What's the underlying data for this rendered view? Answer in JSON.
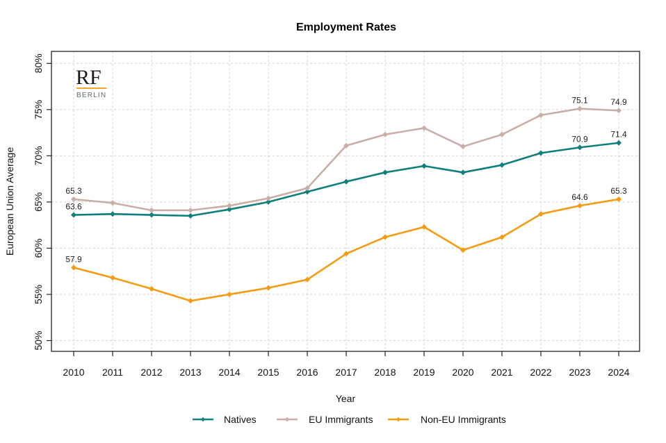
{
  "chart_data": {
    "type": "line",
    "title": "Employment Rates",
    "xlabel": "Year",
    "ylabel": "European Union Average",
    "x": [
      2010,
      2011,
      2012,
      2013,
      2014,
      2015,
      2016,
      2017,
      2018,
      2019,
      2020,
      2021,
      2022,
      2023,
      2024
    ],
    "x_tick_labels": [
      "2010",
      "2011",
      "2012",
      "2013",
      "2014",
      "2015",
      "2016",
      "2017",
      "2018",
      "2019",
      "2020",
      "2021",
      "2022",
      "2023",
      "2024"
    ],
    "ylim": [
      49,
      81
    ],
    "y_ticks": [
      50,
      55,
      60,
      65,
      70,
      75,
      80
    ],
    "y_tick_labels": [
      "50%",
      "55%",
      "60%",
      "65%",
      "70%",
      "75%",
      "80%"
    ],
    "grid": true,
    "legend_position": "bottom",
    "series": [
      {
        "name": "Natives",
        "color": "#0e7f7a",
        "values": [
          63.6,
          63.7,
          63.6,
          63.5,
          64.2,
          65.0,
          66.1,
          67.2,
          68.2,
          68.9,
          68.2,
          69.0,
          70.3,
          70.9,
          71.4
        ],
        "labeled_points": [
          {
            "x": 2010,
            "label": "63.6"
          },
          {
            "x": 2023,
            "label": "70.9"
          },
          {
            "x": 2024,
            "label": "71.4"
          }
        ]
      },
      {
        "name": "EU Immigrants",
        "color": "#c9aea8",
        "values": [
          65.3,
          64.9,
          64.1,
          64.1,
          64.6,
          65.4,
          66.5,
          71.1,
          72.3,
          73.0,
          71.0,
          72.3,
          74.4,
          75.1,
          74.9
        ],
        "labeled_points": [
          {
            "x": 2010,
            "label": "65.3"
          },
          {
            "x": 2023,
            "label": "75.1"
          },
          {
            "x": 2024,
            "label": "74.9"
          }
        ]
      },
      {
        "name": "Non-EU Immigrants",
        "color": "#f39c12",
        "values": [
          57.9,
          56.8,
          55.6,
          54.3,
          55.0,
          55.7,
          56.6,
          59.4,
          61.2,
          62.3,
          59.8,
          61.2,
          63.7,
          64.6,
          65.3
        ],
        "labeled_points": [
          {
            "x": 2010,
            "label": "57.9"
          },
          {
            "x": 2023,
            "label": "64.6"
          },
          {
            "x": 2024,
            "label": "65.3"
          }
        ]
      }
    ]
  },
  "logo": {
    "main": "RF",
    "sub": "BERLIN",
    "accent_color": "#f5a623"
  }
}
